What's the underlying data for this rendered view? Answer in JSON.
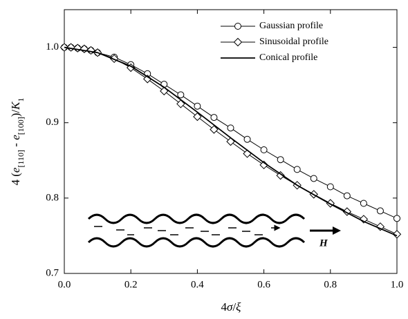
{
  "chart_data": {
    "type": "line",
    "xlabel": [
      "4",
      "σ",
      "/",
      "ξ"
    ],
    "ylabel": [
      "4 (",
      "e",
      "[110]",
      " - ",
      "e",
      "[100]",
      ")/",
      "K",
      "1"
    ],
    "inset_label": "H",
    "xlim": [
      0,
      1.0
    ],
    "ylim": [
      0.7,
      1.05
    ],
    "xticks": [
      {
        "value": 0,
        "label": "0.0"
      },
      0.2,
      0.4,
      0.6,
      0.8,
      {
        "value": 1.0,
        "label": "1.0"
      }
    ],
    "yticks": [
      0.7,
      0.8,
      0.9,
      {
        "value": 1.0,
        "label": "1.0"
      }
    ],
    "legend": "upper right",
    "series": [
      {
        "name": "Gaussian profile",
        "color": "#000000",
        "marker": "circle",
        "x": [
          0,
          0.02,
          0.04,
          0.06,
          0.08,
          0.1,
          0.15,
          0.2,
          0.25,
          0.3,
          0.35,
          0.4,
          0.45,
          0.5,
          0.55,
          0.6,
          0.65,
          0.7,
          0.75,
          0.8,
          0.85,
          0.9,
          0.95,
          1.0
        ],
        "values": [
          1.0,
          1.0,
          0.999,
          0.998,
          0.996,
          0.993,
          0.987,
          0.977,
          0.965,
          0.951,
          0.937,
          0.922,
          0.907,
          0.893,
          0.878,
          0.864,
          0.851,
          0.838,
          0.826,
          0.815,
          0.803,
          0.793,
          0.783,
          0.773
        ]
      },
      {
        "name": "Sinusoidal profile",
        "color": "#000000",
        "marker": "diamond",
        "x": [
          0,
          0.02,
          0.04,
          0.06,
          0.08,
          0.1,
          0.15,
          0.2,
          0.25,
          0.3,
          0.35,
          0.4,
          0.45,
          0.5,
          0.55,
          0.6,
          0.65,
          0.7,
          0.75,
          0.8,
          0.85,
          0.9,
          0.95,
          1.0
        ],
        "values": [
          1.0,
          1.0,
          0.999,
          0.998,
          0.996,
          0.993,
          0.985,
          0.973,
          0.958,
          0.942,
          0.925,
          0.908,
          0.891,
          0.875,
          0.859,
          0.844,
          0.83,
          0.817,
          0.805,
          0.793,
          0.782,
          0.772,
          0.762,
          0.752
        ]
      },
      {
        "name": "Conical profile",
        "color": "#000000",
        "marker": "none",
        "x": [
          0,
          0.1,
          0.2,
          0.3,
          0.4,
          0.5,
          0.6,
          0.7,
          0.8,
          0.9,
          1.0
        ],
        "values": [
          1.0,
          0.993,
          0.975,
          0.947,
          0.914,
          0.88,
          0.847,
          0.817,
          0.792,
          0.769,
          0.75
        ]
      }
    ]
  }
}
